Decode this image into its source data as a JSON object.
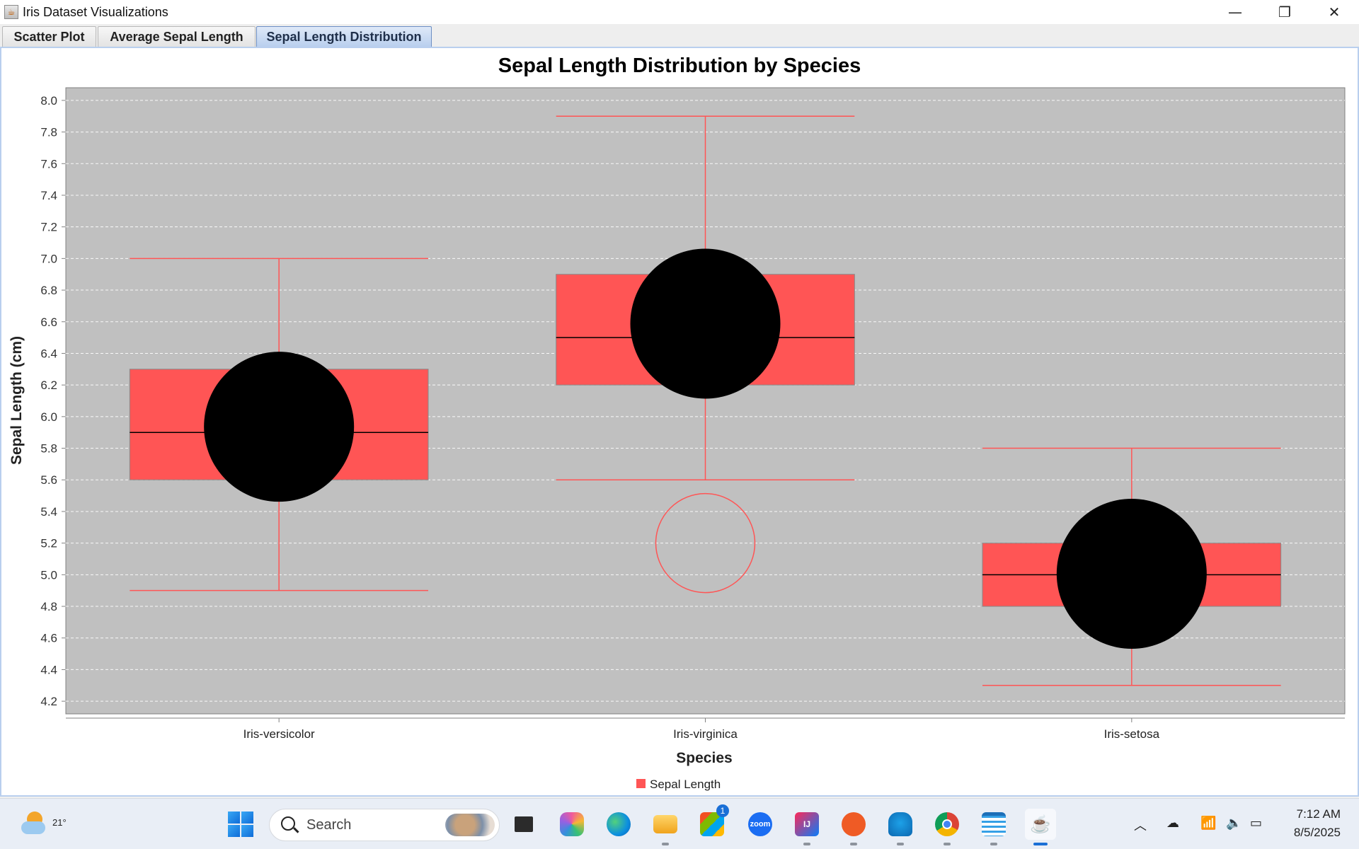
{
  "window": {
    "title": "Iris Dataset Visualizations",
    "controls": {
      "minimize": "—",
      "restore": "❐",
      "close": "✕"
    }
  },
  "tabs": [
    {
      "label": "Scatter Plot",
      "active": false
    },
    {
      "label": "Average Sepal Length",
      "active": false
    },
    {
      "label": "Sepal Length Distribution",
      "active": true
    }
  ],
  "chart_data": {
    "type": "box",
    "title": "Sepal Length Distribution by Species",
    "xlabel": "Species",
    "ylabel": "Sepal Length (cm)",
    "ylim": [
      4.12,
      8.08
    ],
    "yticks": [
      "4.2",
      "4.4",
      "4.6",
      "4.8",
      "5.0",
      "5.2",
      "5.4",
      "5.6",
      "5.8",
      "6.0",
      "6.2",
      "6.4",
      "6.6",
      "6.8",
      "7.0",
      "7.2",
      "7.4",
      "7.6",
      "7.8",
      "8.0"
    ],
    "grid": true,
    "legend_position": "bottom",
    "series": [
      {
        "name": "Sepal Length",
        "color": "#ff5555",
        "boxes": [
          {
            "category": "Iris-versicolor",
            "whisker_low": 4.9,
            "q1": 5.6,
            "median": 5.9,
            "q3": 6.3,
            "whisker_high": 7.0,
            "mean": 5.936,
            "outliers": []
          },
          {
            "category": "Iris-virginica",
            "whisker_low": 5.6,
            "q1": 6.2,
            "median": 6.5,
            "q3": 6.9,
            "whisker_high": 7.9,
            "mean": 6.588,
            "outliers": [
              5.2
            ]
          },
          {
            "category": "Iris-setosa",
            "whisker_low": 4.3,
            "q1": 4.8,
            "median": 5.0,
            "q3": 5.2,
            "whisker_high": 5.8,
            "mean": 5.006,
            "outliers": []
          }
        ]
      }
    ],
    "colors": {
      "plot_background": "#c0c0c0",
      "mean_marker": "#000000",
      "median_line": "#000000"
    }
  },
  "taskbar": {
    "weather_temp": "21°",
    "search_placeholder": "Search",
    "store_badge": "1",
    "zoom_label": "zoom",
    "jetbrains_label": "IJ",
    "time": "7:12 AM",
    "date": "8/5/2025"
  }
}
